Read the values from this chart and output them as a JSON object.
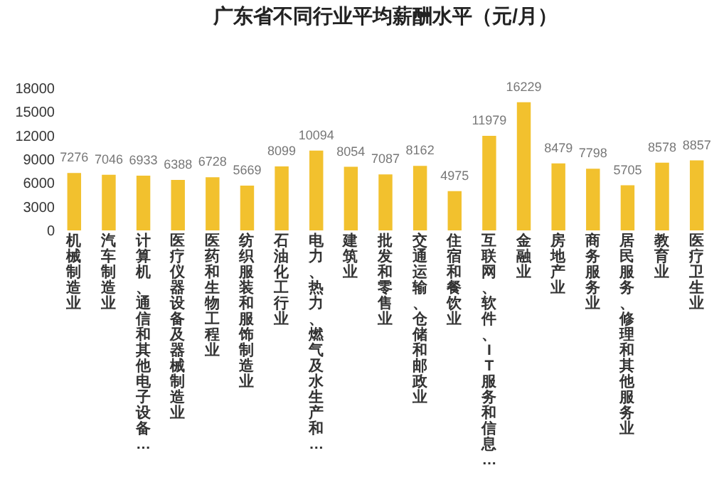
{
  "chart_data": {
    "type": "bar",
    "title": "广东省不同行业平均薪酬水平（元/月）",
    "categories": [
      "机械制造业",
      "汽车制造业",
      "计算机、通信和其他电子设备…",
      "医疗仪器设备及器械制造业",
      "医药和生物工程业",
      "纺织服装和服饰制造业",
      "石油化工行业",
      "电力、热力、燃气及水生产和…",
      "建筑业",
      "批发和零售业",
      "交通运输、仓储和邮政业",
      "住宿和餐饮业",
      "互联网、软件、IT服务和信息…",
      "金融业",
      "房地产业",
      "商务服务业",
      "居民服务、修理和其他服务业",
      "教育业",
      "医疗卫生业"
    ],
    "values": [
      7276,
      7046,
      6933,
      6388,
      6728,
      5669,
      8099,
      10094,
      8054,
      7087,
      8162,
      4975,
      11979,
      16229,
      8479,
      7798,
      5705,
      8578,
      8857
    ],
    "color": "#f2c12e",
    "ylim": [
      0,
      18000
    ],
    "yticks": [
      0,
      3000,
      6000,
      9000,
      12000,
      15000,
      18000
    ],
    "grid": false,
    "data_labels": true
  }
}
